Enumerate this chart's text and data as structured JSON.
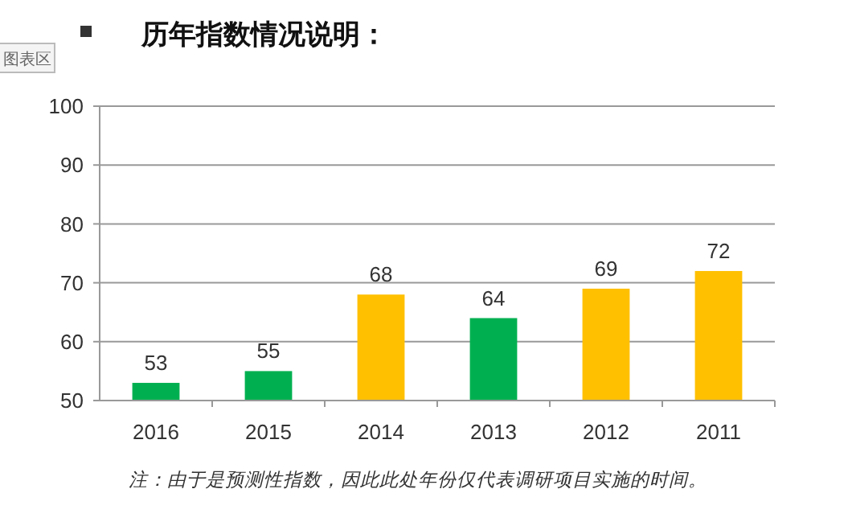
{
  "chart_data": {
    "type": "bar",
    "title": "历年指数情况说明：",
    "categories": [
      "2016",
      "2015",
      "2014",
      "2013",
      "2012",
      "2011"
    ],
    "values": [
      53,
      55,
      68,
      64,
      69,
      72
    ],
    "colors": [
      "#00b050",
      "#00b050",
      "#ffc000",
      "#00b050",
      "#ffc000",
      "#ffc000"
    ],
    "ylim": [
      50,
      100
    ],
    "yticks": [
      50,
      60,
      70,
      80,
      90,
      100
    ],
    "grid": "y",
    "data_labels": true,
    "annotations": [
      "图表区",
      "注：由于是预测性指数，因此此处年份仅代表调研项目实施的时间。"
    ]
  }
}
